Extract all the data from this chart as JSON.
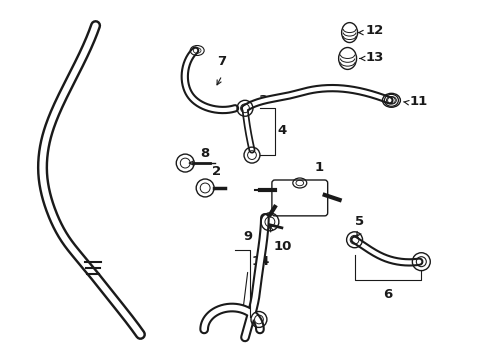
{
  "bg_color": "#ffffff",
  "line_color": "#1a1a1a",
  "label_fontsize": 9.5,
  "fig_width": 4.9,
  "fig_height": 3.6,
  "dpi": 100
}
